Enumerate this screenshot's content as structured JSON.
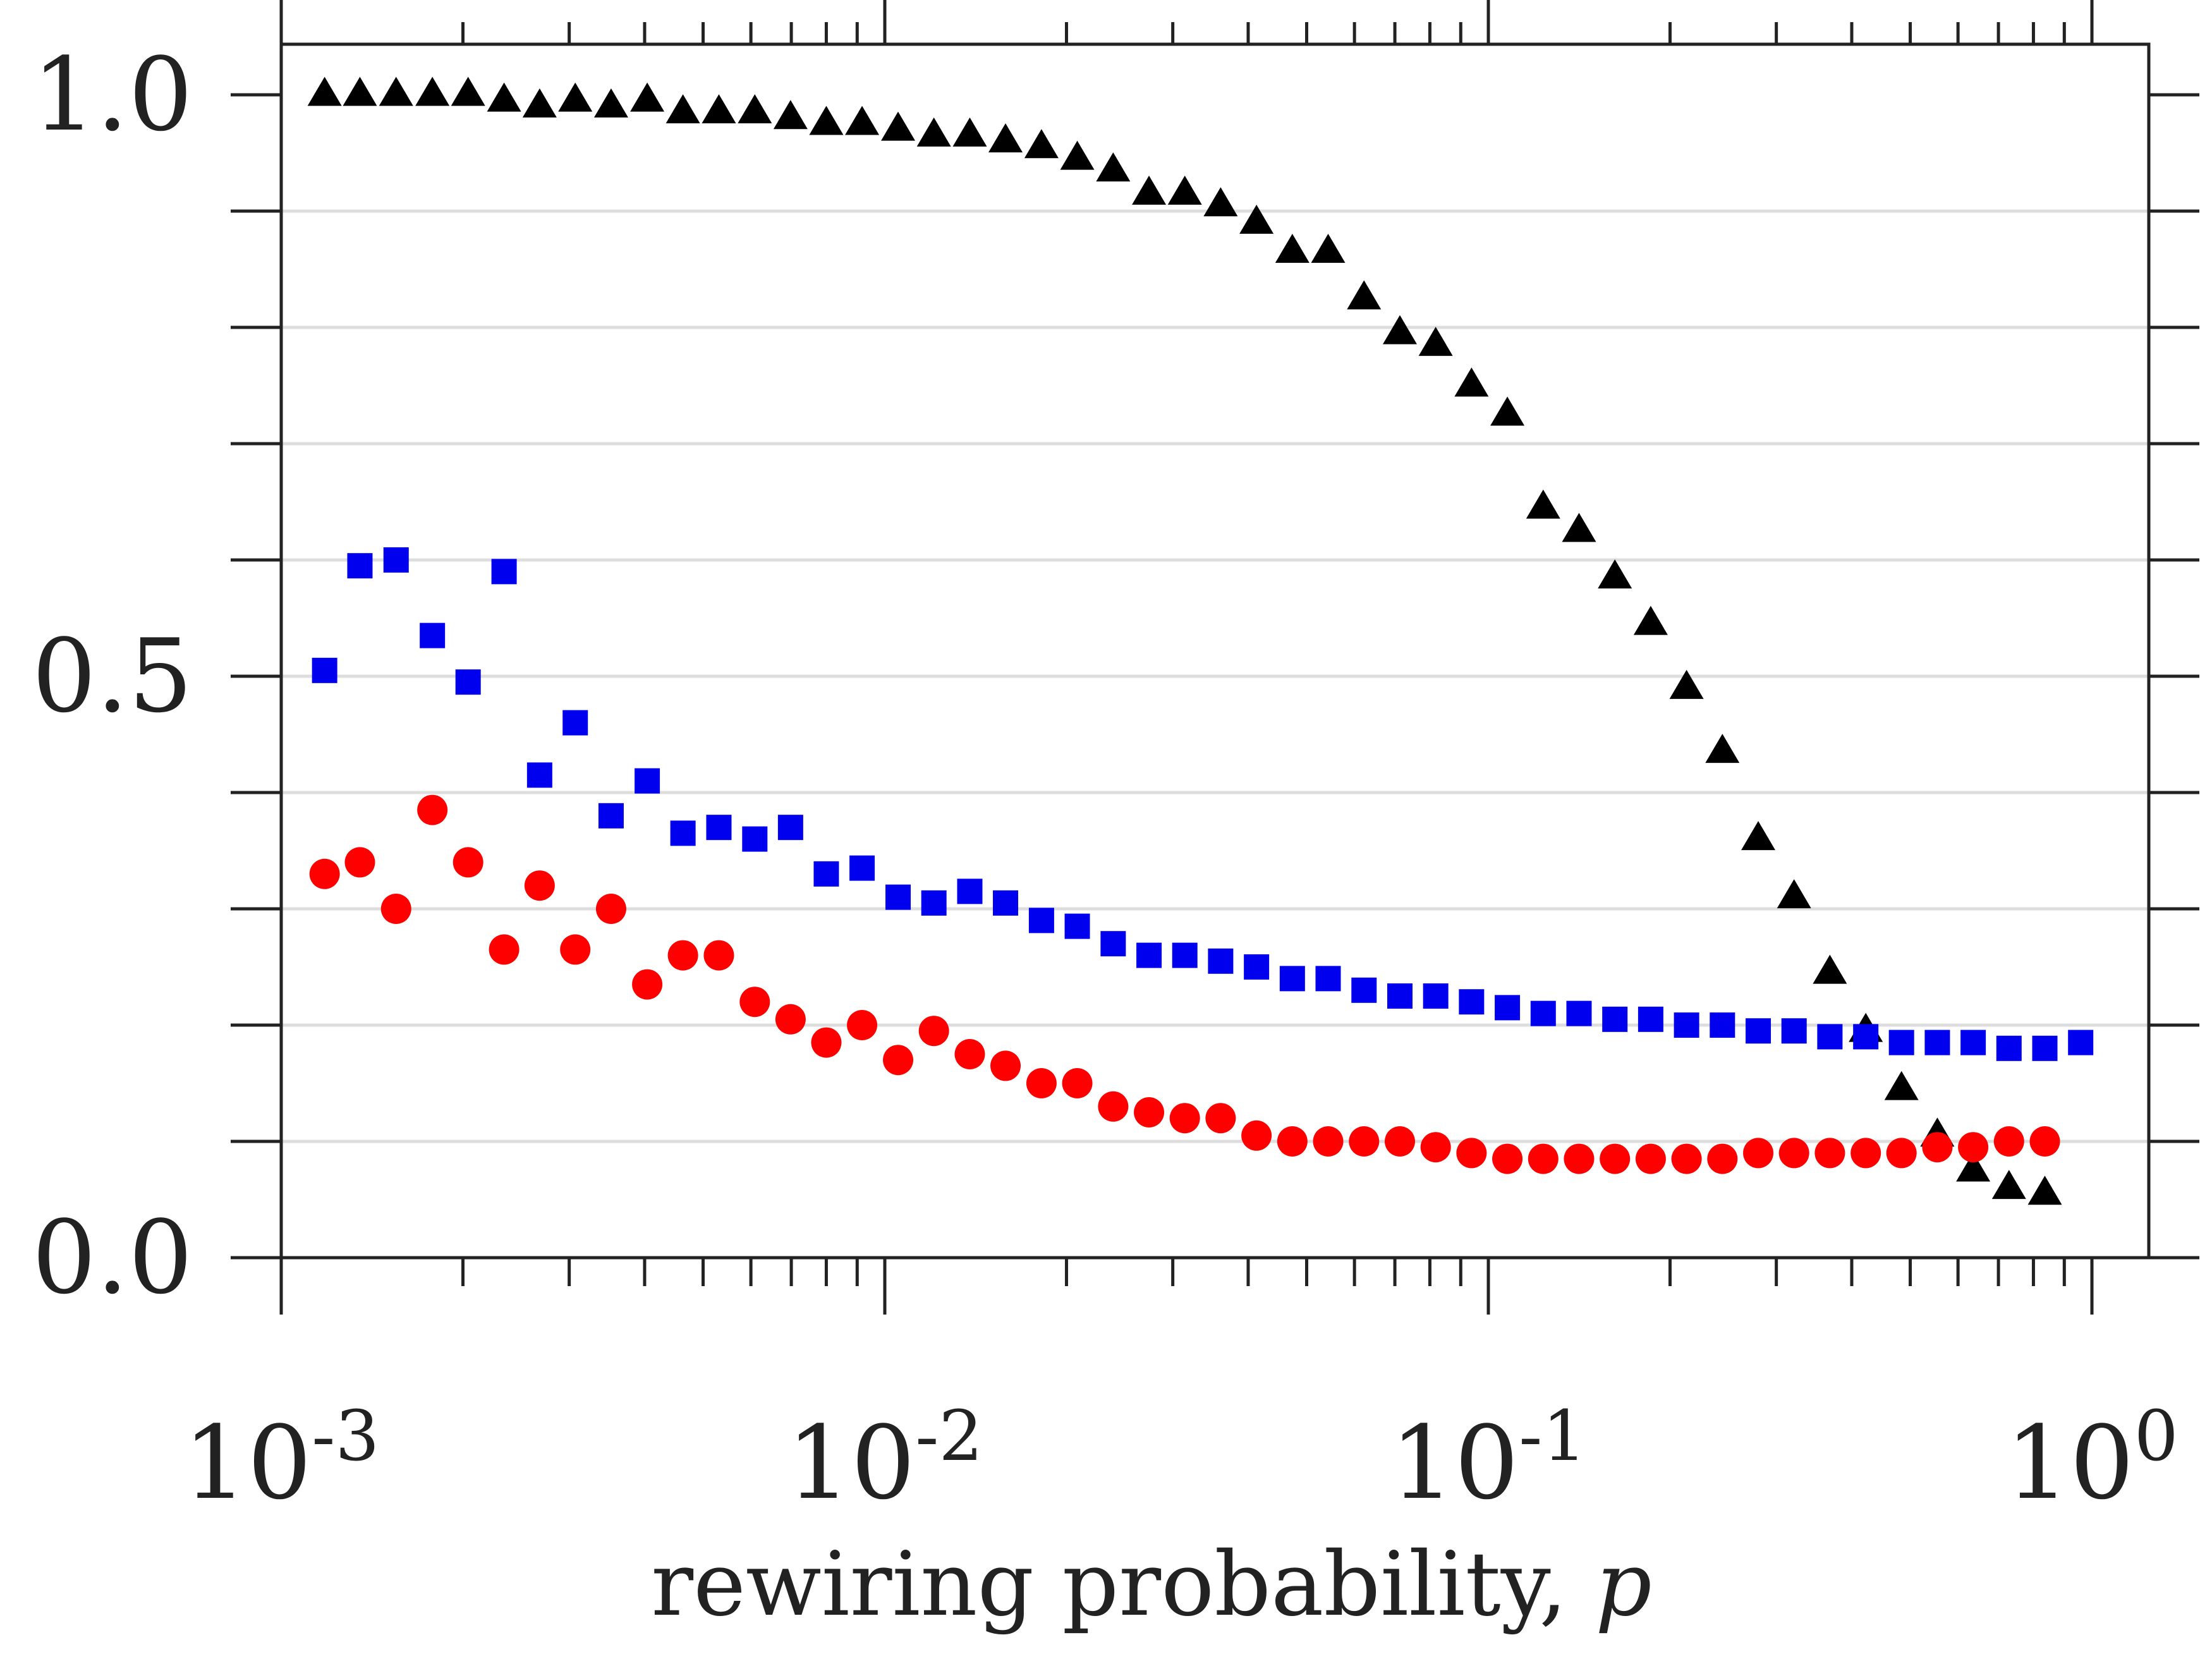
{
  "chart_data": {
    "type": "scatter",
    "title": "",
    "xlabel": "rewiring probability, ",
    "xlabel_var": "p",
    "ylabel": "",
    "xscale": "log",
    "xlim": [
      0.001,
      1
    ],
    "ylim": [
      0,
      1.05
    ],
    "grid": "horizontal",
    "x_ticks": [
      {
        "base": "10",
        "exp": "-3"
      },
      {
        "base": "10",
        "exp": "-2"
      },
      {
        "base": "10",
        "exp": "-1"
      },
      {
        "base": "10",
        "exp": "0"
      }
    ],
    "y_ticks": [
      "0.0",
      "0.5",
      "1.0"
    ],
    "y_minor_ticks": [
      0.1,
      0.2,
      0.3,
      0.4,
      0.6,
      0.7,
      0.8,
      0.9
    ],
    "x": [
      0.00118,
      0.00135,
      0.00155,
      0.00178,
      0.00204,
      0.00234,
      0.00268,
      0.00307,
      0.00352,
      0.00404,
      0.00463,
      0.00531,
      0.00609,
      0.00698,
      0.008,
      0.00917,
      0.01052,
      0.01206,
      0.01383,
      0.01585,
      0.01818,
      0.02084,
      0.0239,
      0.0274,
      0.03141,
      0.03601,
      0.04129,
      0.04734,
      0.05427,
      0.06223,
      0.07135,
      0.0818,
      0.09378,
      0.10752,
      0.12328,
      0.14133,
      0.16204,
      0.18578,
      0.213,
      0.2442,
      0.28,
      0.321,
      0.368,
      0.422,
      0.4836,
      0.5545,
      0.6357,
      0.7288,
      0.8356,
      0.958
    ],
    "series": [
      {
        "name": "triangles",
        "marker": "triangle",
        "color": "#000000",
        "values": [
          1.0,
          1.0,
          1.0,
          1.0,
          1.0,
          0.995,
          0.99,
          0.995,
          0.99,
          0.995,
          0.985,
          0.985,
          0.985,
          0.98,
          0.975,
          0.975,
          0.97,
          0.965,
          0.965,
          0.96,
          0.955,
          0.945,
          0.935,
          0.915,
          0.915,
          0.905,
          0.89,
          0.865,
          0.865,
          0.825,
          0.795,
          0.785,
          0.75,
          0.725,
          0.645,
          0.625,
          0.585,
          0.545,
          0.49,
          0.435,
          0.36,
          0.31,
          0.245,
          0.195,
          0.145,
          0.105,
          0.075,
          0.06,
          0.055,
          null
        ]
      },
      {
        "name": "squares",
        "marker": "square",
        "color": "#0000ee",
        "values": [
          0.505,
          0.595,
          0.6,
          0.535,
          0.495,
          0.59,
          0.415,
          0.46,
          0.38,
          0.41,
          0.365,
          0.37,
          0.36,
          0.37,
          0.33,
          0.335,
          0.31,
          0.305,
          0.315,
          0.305,
          0.29,
          0.285,
          0.27,
          0.26,
          0.26,
          0.255,
          0.25,
          0.24,
          0.24,
          0.23,
          0.225,
          0.225,
          0.22,
          0.215,
          0.21,
          0.21,
          0.205,
          0.205,
          0.2,
          0.2,
          0.195,
          0.195,
          0.19,
          0.19,
          0.185,
          0.185,
          0.185,
          0.18,
          0.18,
          0.185
        ]
      },
      {
        "name": "circles",
        "marker": "circle",
        "color": "#ff0000",
        "values": [
          0.33,
          0.34,
          0.3,
          0.385,
          0.34,
          0.265,
          0.32,
          0.265,
          0.3,
          0.235,
          0.26,
          0.26,
          0.22,
          0.205,
          0.185,
          0.2,
          0.17,
          0.195,
          0.175,
          0.165,
          0.15,
          0.15,
          0.13,
          0.125,
          0.12,
          0.12,
          0.105,
          0.1,
          0.1,
          0.1,
          0.1,
          0.095,
          0.09,
          0.085,
          0.085,
          0.085,
          0.085,
          0.085,
          0.085,
          0.085,
          0.09,
          0.09,
          0.09,
          0.09,
          0.09,
          0.095,
          0.095,
          0.1,
          0.1,
          null
        ]
      }
    ]
  }
}
